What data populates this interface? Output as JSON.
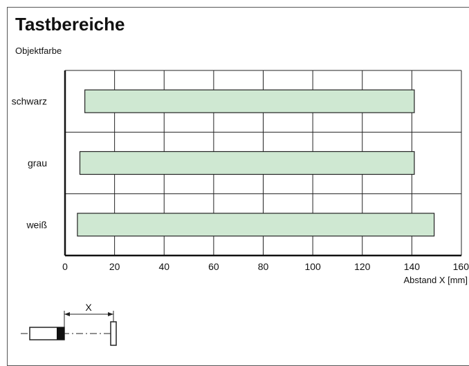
{
  "title": "Tastbereiche",
  "subtitle": "Objektfarbe",
  "chart_data": {
    "type": "bar",
    "orientation": "horizontal",
    "ylabel": "Objektfarbe",
    "xlabel": "Abstand X [mm]",
    "xlim": [
      0,
      160
    ],
    "xticks": [
      0,
      20,
      40,
      60,
      80,
      100,
      120,
      140,
      160
    ],
    "categories": [
      "schwarz",
      "grau",
      "weiß"
    ],
    "ranges": [
      {
        "category": "schwarz",
        "start": 8,
        "end": 141
      },
      {
        "category": "grau",
        "start": 6,
        "end": 141
      },
      {
        "category": "weiß",
        "start": 5,
        "end": 149
      }
    ],
    "grid": true,
    "bar_color": "#cfe8d2"
  },
  "diagram": {
    "label": "X"
  }
}
